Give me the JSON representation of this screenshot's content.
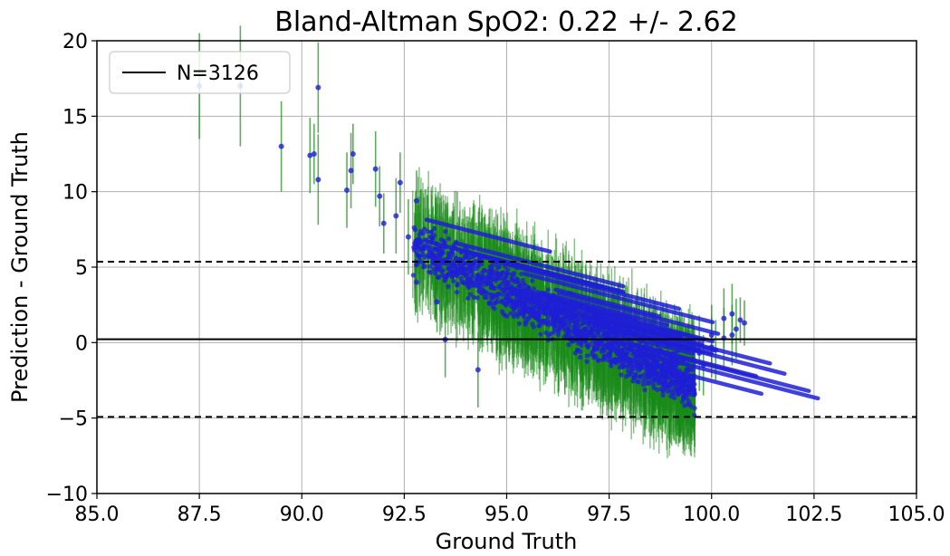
{
  "chart_data": {
    "type": "scatter",
    "title": "Bland-Altman SpO2: 0.22 +/- 2.62",
    "xlabel": "Ground Truth",
    "ylabel": "Prediction - Ground Truth",
    "xlim": [
      85.0,
      105.0
    ],
    "ylim": [
      -10,
      20
    ],
    "x_ticks": [
      "85.0",
      "87.5",
      "90.0",
      "92.5",
      "95.0",
      "97.5",
      "100.0",
      "102.5",
      "105.0"
    ],
    "y_ticks": [
      "−10",
      "−5",
      "0",
      "5",
      "10",
      "15",
      "20"
    ],
    "grid": true,
    "legend": {
      "placement": "top-left",
      "entries": [
        "N=3126"
      ]
    },
    "mean_line": 0.22,
    "limits_of_agreement": [
      -4.92,
      5.36
    ],
    "colors": {
      "points": "#1f1fd6",
      "error_bars": "#1a8a1a",
      "lines": "#000000"
    },
    "sample_points": [
      {
        "x": 87.5,
        "y": 17.0,
        "err": 3.5
      },
      {
        "x": 88.5,
        "y": 17.0,
        "err": 4.0
      },
      {
        "x": 89.5,
        "y": 13.0,
        "err": 3.0
      },
      {
        "x": 90.2,
        "y": 12.4,
        "err": 2.5
      },
      {
        "x": 90.3,
        "y": 12.5,
        "err": 2.0
      },
      {
        "x": 90.4,
        "y": 16.9,
        "err": 3.0
      },
      {
        "x": 90.4,
        "y": 10.8,
        "err": 3.0
      },
      {
        "x": 91.1,
        "y": 10.1,
        "err": 2.5
      },
      {
        "x": 91.2,
        "y": 11.4,
        "err": 2.5
      },
      {
        "x": 91.25,
        "y": 12.5,
        "err": 2.0
      },
      {
        "x": 91.8,
        "y": 11.5,
        "err": 2.5
      },
      {
        "x": 91.9,
        "y": 9.7,
        "err": 2.0
      },
      {
        "x": 92.0,
        "y": 7.9,
        "err": 2.0
      },
      {
        "x": 92.3,
        "y": 8.4,
        "err": 2.5
      },
      {
        "x": 92.4,
        "y": 10.6,
        "err": 2.0
      },
      {
        "x": 92.6,
        "y": 7.0,
        "err": 2.5
      },
      {
        "x": 92.8,
        "y": 9.4,
        "err": 2.0
      },
      {
        "x": 92.8,
        "y": 4.0,
        "err": 2.0
      },
      {
        "x": 93.3,
        "y": 2.7,
        "err": 2.0
      },
      {
        "x": 93.5,
        "y": 0.2,
        "err": 2.5
      },
      {
        "x": 94.3,
        "y": -1.8,
        "err": 2.5
      },
      {
        "x": 99.7,
        "y": -0.7,
        "err": 2.5
      },
      {
        "x": 99.8,
        "y": -1.5,
        "err": 2.0
      },
      {
        "x": 100.0,
        "y": 0.5,
        "err": 2.0
      },
      {
        "x": 100.0,
        "y": -0.3,
        "err": 2.0
      },
      {
        "x": 100.1,
        "y": -0.5,
        "err": 2.0
      },
      {
        "x": 100.3,
        "y": 0.3,
        "err": 2.0
      },
      {
        "x": 100.3,
        "y": 1.6,
        "err": 2.0
      },
      {
        "x": 100.5,
        "y": 1.9,
        "err": 2.0
      },
      {
        "x": 100.5,
        "y": 0.5,
        "err": 2.0
      },
      {
        "x": 100.6,
        "y": 0.9,
        "err": 2.0
      },
      {
        "x": 100.7,
        "y": 1.5,
        "err": 1.5
      },
      {
        "x": 100.8,
        "y": 1.3,
        "err": 1.5
      }
    ],
    "dense_band": {
      "x_start": 92.7,
      "x_end": 99.6,
      "y_start": 6.5,
      "y_end": -3.0,
      "vertical_spread": 5.0
    },
    "diagonal_streak_length": 4.3
  }
}
